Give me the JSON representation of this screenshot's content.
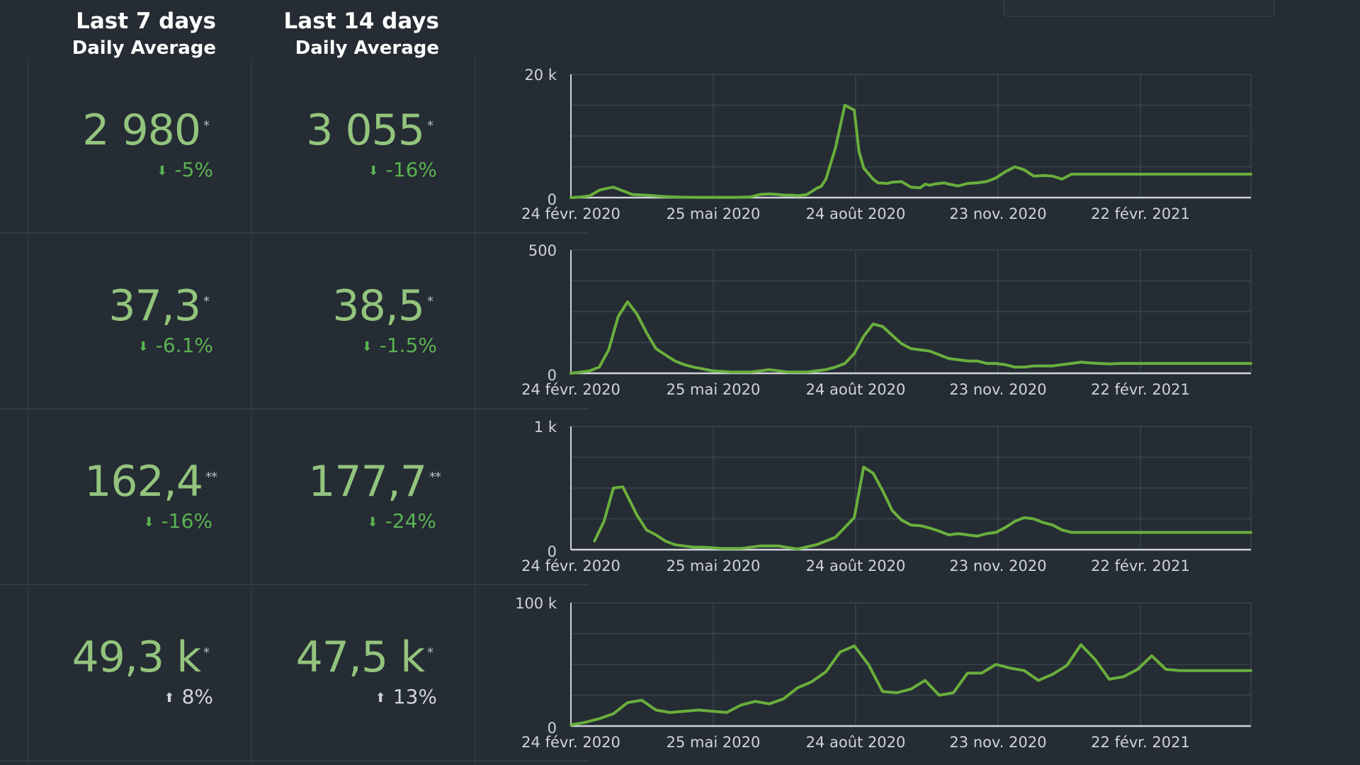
{
  "headers": {
    "col1": {
      "title": "Last 7 days",
      "subtitle": "Daily Average"
    },
    "col2": {
      "title": "Last 14 days",
      "subtitle": "Daily Average"
    }
  },
  "colors": {
    "background": "#252c33",
    "value_green": "#93c47d",
    "change_green": "#5ab352",
    "line_green": "#6aaf3d",
    "grid": "#3a444d"
  },
  "rows": [
    {
      "last7": {
        "value": "2 980",
        "marker": "*",
        "change": "-5%",
        "direction": "down"
      },
      "last14": {
        "value": "3 055",
        "marker": "*",
        "change": "-16%",
        "direction": "down"
      }
    },
    {
      "last7": {
        "value": "37,3",
        "marker": "*",
        "change": "-6.1%",
        "direction": "down"
      },
      "last14": {
        "value": "38,5",
        "marker": "*",
        "change": "-1.5%",
        "direction": "down"
      }
    },
    {
      "last7": {
        "value": "162,4",
        "marker": "**",
        "change": "-16%",
        "direction": "down"
      },
      "last14": {
        "value": "177,7",
        "marker": "**",
        "change": "-24%",
        "direction": "down"
      }
    },
    {
      "last7": {
        "value": "49,3 k",
        "marker": "*",
        "change": "8%",
        "direction": "up"
      },
      "last14": {
        "value": "47,5 k",
        "marker": "*",
        "change": "13%",
        "direction": "up"
      }
    }
  ],
  "chart_data": [
    {
      "type": "line",
      "x_ticks": [
        "24 févr. 2020",
        "25 mai 2020",
        "24 août 2020",
        "23 nov. 2020",
        "22 févr. 2021"
      ],
      "y_tick_labels": [
        "0",
        "20 k"
      ],
      "ylim": [
        0,
        20000
      ],
      "grid": true,
      "x": [
        0,
        2,
        4,
        6,
        7,
        9,
        11,
        13,
        16,
        19,
        22,
        26,
        29,
        32,
        35,
        38,
        39,
        40,
        42,
        44,
        45,
        47,
        48,
        50,
        52,
        53,
        54,
        56,
        58,
        60,
        61,
        62,
        64,
        65,
        67,
        68,
        70,
        72,
        74,
        75,
        76,
        77,
        78,
        79,
        80,
        82,
        84,
        86,
        88,
        90,
        92,
        94,
        96,
        98,
        100,
        102,
        104,
        106,
        108,
        110,
        112,
        114,
        116,
        118,
        120,
        122,
        124,
        126,
        128,
        130,
        132,
        134,
        136,
        138,
        140,
        142,
        144
      ],
      "values": [
        0,
        100,
        300,
        1200,
        1400,
        1700,
        1100,
        500,
        400,
        200,
        100,
        50,
        50,
        50,
        50,
        100,
        300,
        500,
        600,
        500,
        400,
        400,
        300,
        500,
        1500,
        1800,
        3000,
        8000,
        15000,
        14200,
        7500,
        4800,
        3000,
        2400,
        2300,
        2500,
        2600,
        1700,
        1600,
        2200,
        2000,
        2200,
        2300,
        2400,
        2200,
        1900,
        2300,
        2400,
        2600,
        3200,
        4200,
        5000,
        4500,
        3500,
        3600,
        3500,
        3000,
        3800,
        3800,
        3800,
        3800,
        3800,
        3800,
        3800,
        3800,
        3800,
        3800,
        3800,
        3800,
        3800,
        3800,
        3800,
        3800,
        3800,
        3800,
        3800,
        3800
      ]
    },
    {
      "type": "line",
      "x_ticks": [
        "24 févr. 2020",
        "25 mai 2020",
        "24 août 2020",
        "23 nov. 2020",
        "22 févr. 2021"
      ],
      "y_tick_labels": [
        "0",
        "500"
      ],
      "ylim": [
        0,
        500
      ],
      "grid": true,
      "x": [
        0,
        2,
        4,
        6,
        8,
        10,
        12,
        14,
        16,
        18,
        20,
        22,
        24,
        26,
        30,
        34,
        38,
        42,
        46,
        50,
        52,
        54,
        56,
        58,
        60,
        62,
        64,
        66,
        68,
        70,
        72,
        74,
        76,
        78,
        80,
        82,
        84,
        86,
        88,
        90,
        92,
        94,
        96,
        98,
        100,
        102,
        104,
        106,
        108,
        110,
        112,
        114,
        116,
        118,
        120,
        122,
        124,
        126,
        128,
        130,
        132,
        134,
        136,
        138,
        140,
        142,
        144
      ],
      "values": [
        0,
        5,
        10,
        25,
        95,
        230,
        290,
        240,
        165,
        100,
        75,
        50,
        35,
        25,
        10,
        5,
        5,
        15,
        5,
        5,
        10,
        15,
        25,
        40,
        80,
        150,
        200,
        190,
        155,
        120,
        100,
        95,
        90,
        75,
        60,
        55,
        50,
        50,
        40,
        40,
        35,
        25,
        25,
        30,
        30,
        30,
        35,
        40,
        45,
        42,
        40,
        38,
        40,
        40,
        40,
        40,
        40,
        40,
        40,
        40,
        40,
        40,
        40,
        40,
        40,
        40,
        40
      ]
    },
    {
      "type": "line",
      "x": [
        5,
        7,
        9,
        11,
        14,
        16,
        18,
        20,
        22,
        24,
        26,
        28,
        32,
        36,
        40,
        44,
        48,
        52,
        56,
        60,
        62,
        64,
        66,
        68,
        70,
        72,
        74,
        76,
        78,
        80,
        82,
        84,
        86,
        88,
        90,
        92,
        94,
        96,
        98,
        100,
        102,
        104,
        106,
        108,
        110,
        112,
        114,
        116,
        118,
        120,
        122,
        124,
        126,
        128,
        130,
        132,
        134,
        136,
        138,
        140,
        142,
        144
      ],
      "x_ticks": [
        "24 févr. 2020",
        "25 mai 2020",
        "24 août 2020",
        "23 nov. 2020",
        "22 févr. 2021"
      ],
      "y_tick_labels": [
        "0",
        "1 k"
      ],
      "ylim": [
        0,
        1000
      ],
      "grid": true,
      "values": [
        70,
        230,
        500,
        510,
        280,
        160,
        120,
        70,
        40,
        30,
        20,
        20,
        10,
        10,
        30,
        30,
        5,
        40,
        100,
        260,
        670,
        620,
        480,
        320,
        240,
        200,
        195,
        175,
        150,
        120,
        130,
        120,
        110,
        130,
        140,
        180,
        230,
        260,
        250,
        220,
        200,
        160,
        140,
        140,
        140,
        140,
        140,
        140,
        140,
        140,
        140,
        140,
        140,
        140,
        140,
        140,
        140,
        140,
        140,
        140,
        140,
        140
      ]
    },
    {
      "type": "line",
      "x_ticks": [
        "24 févr. 2020",
        "25 mai 2020",
        "24 août 2020",
        "23 nov. 2020",
        "22 févr. 2021"
      ],
      "y_tick_labels": [
        "0",
        "100 k"
      ],
      "ylim": [
        0,
        100000
      ],
      "grid": true,
      "x": [
        0,
        3,
        6,
        9,
        12,
        15,
        18,
        21,
        24,
        27,
        30,
        33,
        36,
        39,
        42,
        45,
        48,
        51,
        54,
        57,
        60,
        63,
        66,
        69,
        72,
        75,
        78,
        81,
        84,
        87,
        90,
        93,
        96,
        99,
        102,
        105,
        108,
        111,
        114,
        117,
        120,
        123,
        126,
        129,
        132,
        135,
        138,
        141,
        144
      ],
      "values": [
        1000,
        3000,
        6000,
        10000,
        19000,
        21000,
        13000,
        11000,
        12000,
        13000,
        12000,
        11000,
        17000,
        20000,
        18000,
        22000,
        31000,
        36000,
        44000,
        60000,
        65000,
        50000,
        28000,
        27000,
        30000,
        37000,
        25000,
        27000,
        43000,
        43000,
        50000,
        47000,
        45000,
        37000,
        42000,
        49000,
        66000,
        54000,
        38000,
        40000,
        46000,
        57000,
        46000,
        45000,
        45000,
        45000,
        45000,
        45000,
        45000
      ]
    }
  ]
}
